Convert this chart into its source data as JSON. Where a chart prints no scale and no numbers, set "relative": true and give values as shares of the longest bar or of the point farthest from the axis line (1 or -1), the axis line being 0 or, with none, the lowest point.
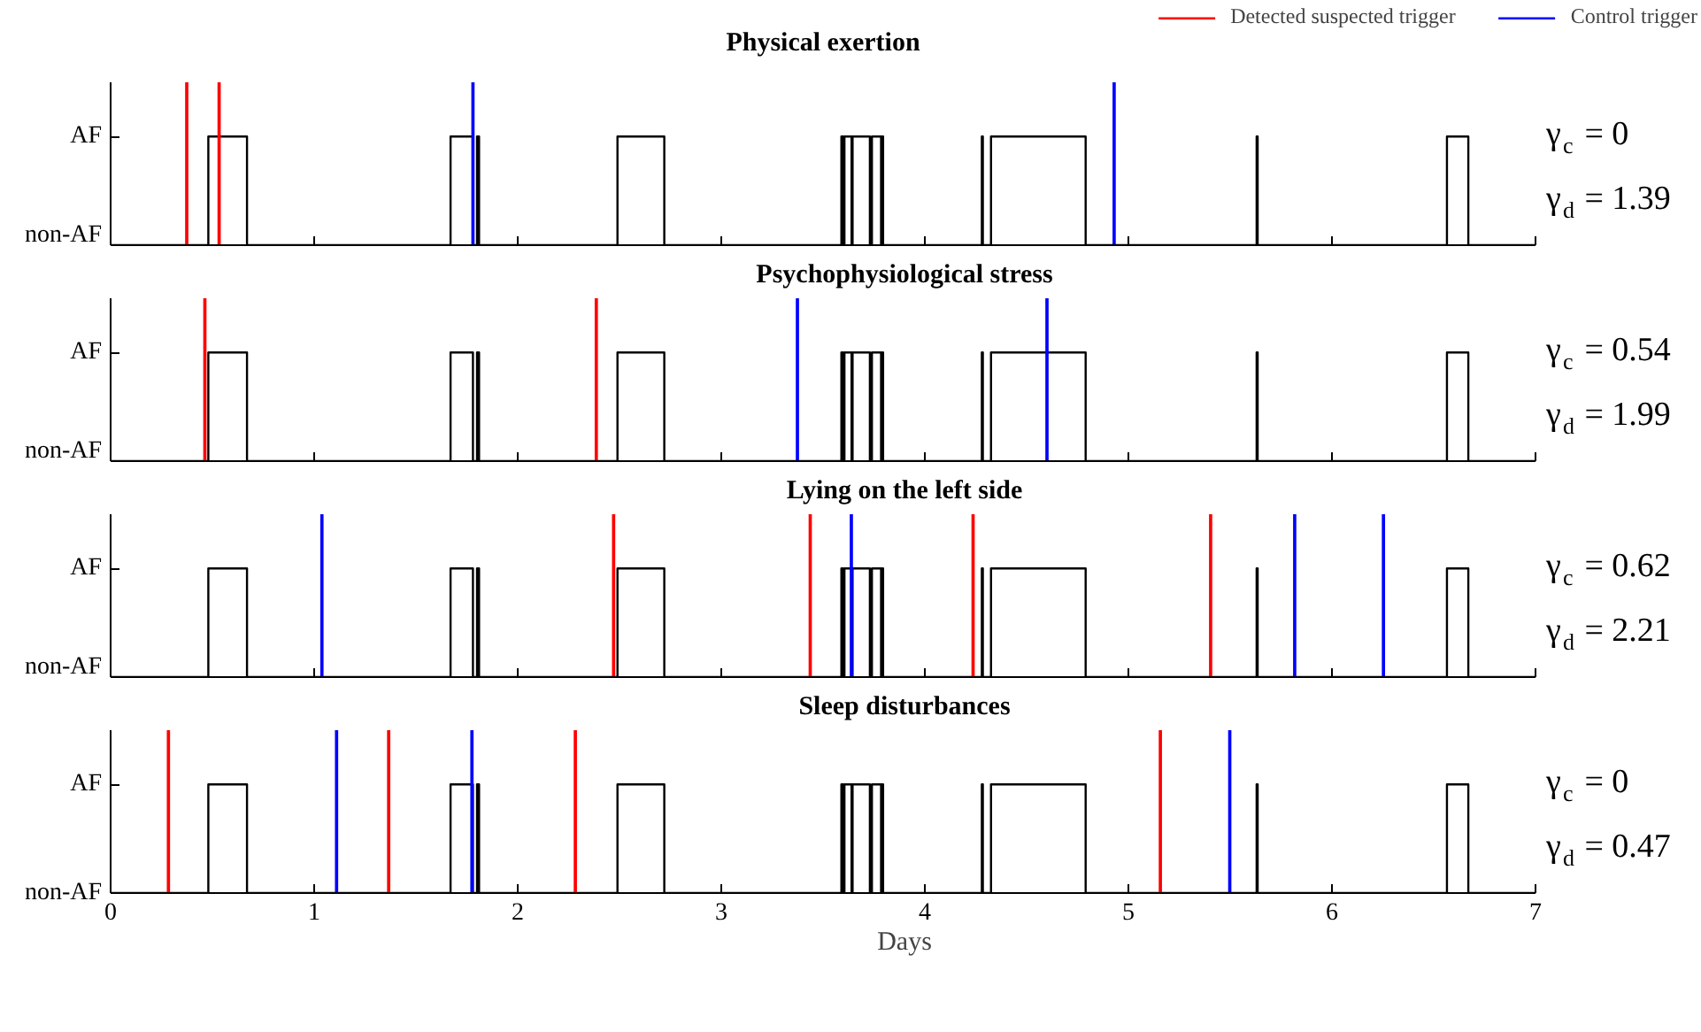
{
  "chart_data": [
    {
      "type": "step",
      "title": "Physical exertion",
      "relative": true,
      "xlim": [
        0,
        7
      ],
      "xticks": [
        0,
        1,
        2,
        3,
        4,
        5,
        6,
        7
      ],
      "tick_labels": false,
      "grid": false,
      "legend": "top right",
      "annotations": [
        "AF",
        "non-AF",
        "γ$_{c}$ = 0",
        "γ$_{d}$ = 1.39"
      ],
      "series": [
        {
          "color": "#000000",
          "x": [
            0,
            0.48,
            0.67,
            1.67,
            1.78,
            1.8,
            1.81,
            2.49,
            2.72,
            3.59,
            3.6,
            3.605,
            3.64,
            3.645,
            3.73,
            3.74,
            3.785,
            3.79,
            3.795,
            4.28,
            4.285,
            4.325,
            4.79,
            5.63,
            5.635,
            6.565,
            6.67,
            7
          ],
          "values": [
            0,
            0.667,
            0,
            0.667,
            0,
            0.667,
            0,
            0.667,
            0,
            0.667,
            0,
            0.667,
            0,
            0.667,
            0,
            0.667,
            0,
            0.667,
            0,
            0.667,
            0,
            0.667,
            0,
            0.667,
            0,
            0.667,
            0,
            0
          ]
        },
        {
          "type": "bar",
          "name": "Detected suspected trigger",
          "color": "#ff0000",
          "x": [
            0.374,
            0.533
          ],
          "values": [
            1,
            1
          ]
        },
        {
          "type": "bar",
          "name": "Control trigger",
          "color": "#0000ff",
          "x": [
            1.78,
            4.93
          ],
          "values": [
            1,
            1
          ]
        }
      ]
    },
    {
      "type": "step",
      "title": "Psychophysiological stress",
      "relative": true,
      "xlim": [
        0,
        7
      ],
      "xticks": [
        0,
        1,
        2,
        3,
        4,
        5,
        6,
        7
      ],
      "tick_labels": false,
      "grid": false,
      "annotations": [
        "AF",
        "non-AF",
        "γ$_{c}$ = 0.54",
        "γ$_{d}$ = 1.99"
      ],
      "series": [
        {
          "color": "#000000",
          "x": [
            0,
            0.48,
            0.67,
            1.67,
            1.78,
            1.8,
            1.81,
            2.49,
            2.72,
            3.59,
            3.6,
            3.605,
            3.64,
            3.645,
            3.73,
            3.74,
            3.785,
            3.79,
            3.795,
            4.28,
            4.285,
            4.325,
            4.79,
            5.63,
            5.635,
            6.565,
            6.67,
            7
          ],
          "values": [
            0,
            0.667,
            0,
            0.667,
            0,
            0.667,
            0,
            0.667,
            0,
            0.667,
            0,
            0.667,
            0,
            0.667,
            0,
            0.667,
            0,
            0.667,
            0,
            0.667,
            0,
            0.667,
            0,
            0.667,
            0,
            0.667,
            0,
            0
          ]
        },
        {
          "type": "bar",
          "color": "#ff0000",
          "x": [
            0.463,
            2.386
          ],
          "values": [
            1,
            1
          ]
        },
        {
          "type": "bar",
          "color": "#0000ff",
          "x": [
            3.374,
            4.6
          ],
          "values": [
            1,
            1
          ]
        }
      ]
    },
    {
      "type": "step",
      "title": "Lying on the left side",
      "relative": true,
      "xlim": [
        0,
        7
      ],
      "xticks": [
        0,
        1,
        2,
        3,
        4,
        5,
        6,
        7
      ],
      "tick_labels": false,
      "grid": false,
      "annotations": [
        "AF",
        "non-AF",
        "γ$_{c}$ = 0.62",
        "γ$_{d}$ = 2.21"
      ],
      "series": [
        {
          "color": "#000000",
          "x": [
            0,
            0.48,
            0.67,
            1.67,
            1.78,
            1.8,
            1.81,
            2.49,
            2.72,
            3.59,
            3.6,
            3.605,
            3.64,
            3.645,
            3.73,
            3.74,
            3.785,
            3.79,
            3.795,
            4.28,
            4.285,
            4.325,
            4.79,
            5.63,
            5.635,
            6.565,
            6.67,
            7
          ],
          "values": [
            0,
            0.667,
            0,
            0.667,
            0,
            0.667,
            0,
            0.667,
            0,
            0.667,
            0,
            0.667,
            0,
            0.667,
            0,
            0.667,
            0,
            0.667,
            0,
            0.667,
            0,
            0.667,
            0,
            0.667,
            0,
            0.667,
            0,
            0
          ]
        },
        {
          "type": "bar",
          "color": "#ff0000",
          "x": [
            2.471,
            3.437,
            4.237,
            5.404
          ],
          "values": [
            1,
            1,
            1,
            1
          ]
        },
        {
          "type": "bar",
          "color": "#0000ff",
          "x": [
            1.038,
            3.639,
            5.817,
            6.253
          ],
          "values": [
            1,
            1,
            1,
            1
          ]
        }
      ]
    },
    {
      "type": "step",
      "title": "Sleep disturbances",
      "xlabel": "Days",
      "relative": true,
      "xlim": [
        0,
        7
      ],
      "xticks": [
        0,
        1,
        2,
        3,
        4,
        5,
        6,
        7
      ],
      "tick_labels": "x",
      "grid": false,
      "annotations": [
        "AF",
        "non-AF",
        "γ$_{c}$ = 0",
        "γ$_{d}$ = 0.47"
      ],
      "series": [
        {
          "color": "#000000",
          "x": [
            0,
            0.48,
            0.67,
            1.67,
            1.78,
            1.8,
            1.81,
            2.49,
            2.72,
            3.59,
            3.6,
            3.605,
            3.64,
            3.645,
            3.73,
            3.74,
            3.785,
            3.79,
            3.795,
            4.28,
            4.285,
            4.325,
            4.79,
            5.63,
            5.635,
            6.565,
            6.67,
            7
          ],
          "values": [
            0,
            0.667,
            0,
            0.667,
            0,
            0.667,
            0,
            0.667,
            0,
            0.667,
            0,
            0.667,
            0,
            0.667,
            0,
            0.667,
            0,
            0.667,
            0,
            0.667,
            0,
            0.667,
            0,
            0.667,
            0,
            0.667,
            0,
            0
          ]
        },
        {
          "type": "bar",
          "color": "#ff0000",
          "x": [
            0.284,
            1.366,
            2.283,
            5.157
          ],
          "values": [
            1,
            1,
            1,
            1
          ]
        },
        {
          "type": "bar",
          "color": "#0000ff",
          "x": [
            1.11,
            1.775,
            5.498
          ],
          "values": [
            1,
            1,
            1
          ]
        }
      ]
    }
  ]
}
